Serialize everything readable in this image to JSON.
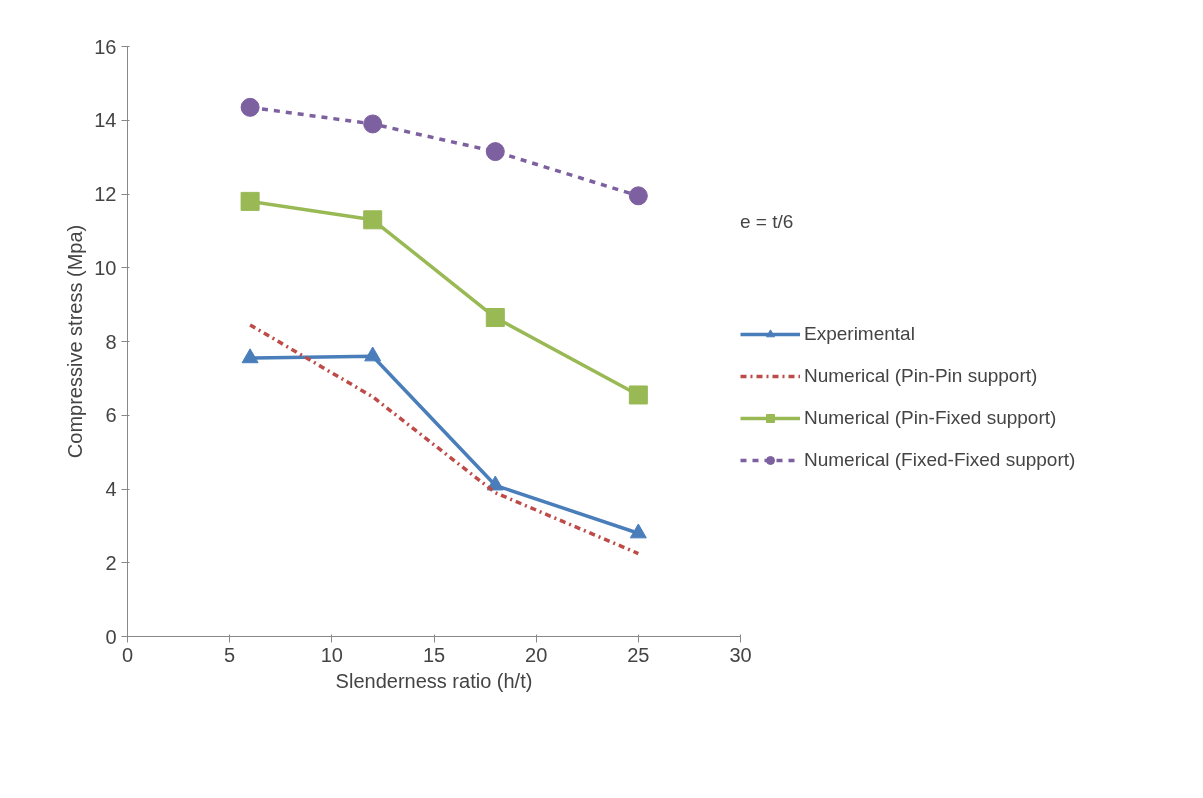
{
  "chart_data": {
    "type": "line",
    "xlabel": "Slenderness ratio (h/t)",
    "ylabel": "Compressive stress (Mpa)",
    "x": [
      6,
      12,
      18,
      25
    ],
    "series": [
      {
        "name": "Experimental",
        "color": "#4a7ebb",
        "values": [
          7.55,
          7.6,
          4.1,
          2.8
        ],
        "marker": "triangle",
        "line_style": "solid"
      },
      {
        "name": "Numerical (Pin-Pin support)",
        "color": "#be4b48",
        "values": [
          8.45,
          6.5,
          3.9,
          2.25
        ],
        "marker": "none",
        "line_style": "dashdot"
      },
      {
        "name": "Numerical (Pin-Fixed support)",
        "color": "#98b954",
        "values": [
          11.8,
          11.3,
          8.65,
          6.55
        ],
        "marker": "square",
        "line_style": "solid"
      },
      {
        "name": "Numerical (Fixed-Fixed support)",
        "color": "#7d60a0",
        "values": [
          14.35,
          13.9,
          13.15,
          11.95
        ],
        "marker": "circle",
        "line_style": "dashed"
      }
    ],
    "xlim": [
      0,
      30
    ],
    "xticks": [
      0,
      5,
      10,
      15,
      20,
      25,
      30
    ],
    "ylim": [
      0,
      16
    ],
    "yticks": [
      0,
      2,
      4,
      6,
      8,
      10,
      12,
      14,
      16
    ],
    "grid": false,
    "legend": "right",
    "annotations": [
      "e = t/6"
    ]
  }
}
